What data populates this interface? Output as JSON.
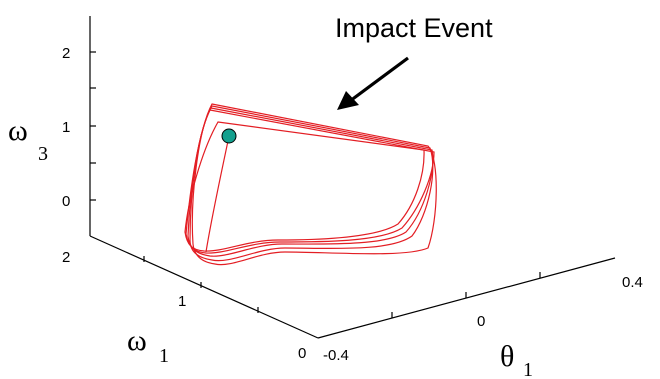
{
  "chart_data": {
    "type": "line",
    "title": "",
    "annotation": "Impact Event",
    "axes": {
      "x": {
        "symbol": "θ",
        "subscript": "1",
        "ticks": [
          -0.4,
          0,
          0.4
        ],
        "tick_labels": [
          "-0.4",
          "0",
          "0.4"
        ]
      },
      "y": {
        "symbol": "ω",
        "subscript": "1",
        "ticks": [
          0,
          1,
          2
        ],
        "tick_labels": [
          "0",
          "1",
          "2"
        ]
      },
      "z": {
        "symbol": "ω",
        "subscript": "3",
        "ticks": [
          0,
          1,
          2
        ],
        "tick_labels": [
          "0",
          "1",
          "2"
        ]
      }
    },
    "series_color": "#e31e24",
    "marker": {
      "color": "#13a08e",
      "shape": "circle"
    },
    "trajectory_loops": 5,
    "grid": false
  }
}
